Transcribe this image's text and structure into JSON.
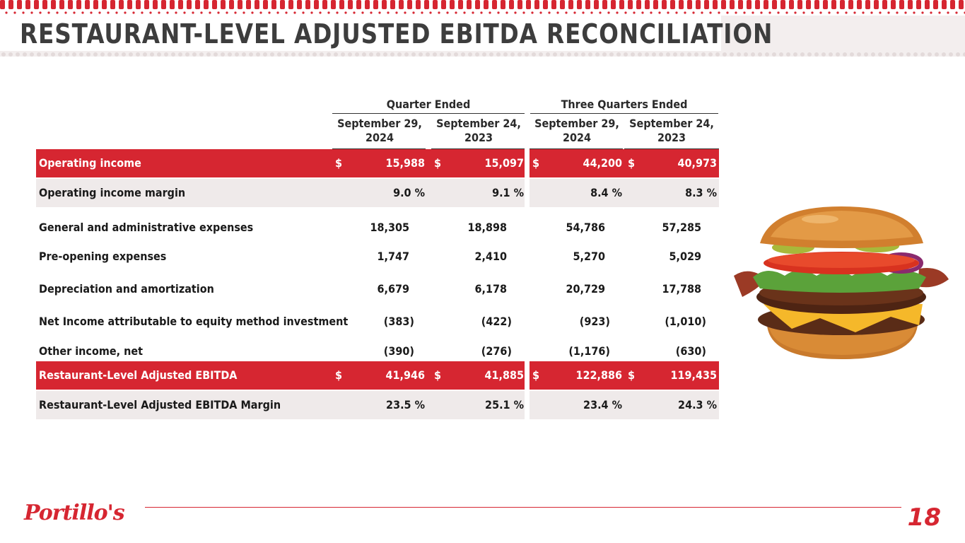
{
  "title": "RESTAURANT-LEVEL ADJUSTED EBITDA RECONCILIATION",
  "groups": {
    "quarter": "Quarter Ended",
    "three_quarters": "Three Quarters Ended"
  },
  "columns": [
    {
      "line1": "September 29,",
      "line2": "2024"
    },
    {
      "line1": "September 24,",
      "line2": "2023"
    },
    {
      "line1": "September 29,",
      "line2": "2024"
    },
    {
      "line1": "September 24,",
      "line2": "2023"
    }
  ],
  "rows": [
    {
      "label": "Operating income",
      "values": [
        "15,988",
        "15,097",
        "44,200",
        "40,973"
      ],
      "currency": "$"
    },
    {
      "label": "Operating income margin",
      "values": [
        "9.0 %",
        "9.1 %",
        "8.4 %",
        "8.3 %"
      ]
    },
    {
      "label": "General and administrative expenses",
      "values": [
        "18,305",
        "18,898",
        "54,786",
        "57,285"
      ]
    },
    {
      "label": "Pre-opening expenses",
      "values": [
        "1,747",
        "2,410",
        "5,270",
        "5,029"
      ]
    },
    {
      "label": "Depreciation and amortization",
      "values": [
        "6,679",
        "6,178",
        "20,729",
        "17,788"
      ]
    },
    {
      "label": "Net Income attributable to equity method investment",
      "values": [
        "(383)",
        "(422)",
        "(923)",
        "(1,010)"
      ]
    },
    {
      "label": "Other income, net",
      "values": [
        "(390)",
        "(276)",
        "(1,176)",
        "(630)"
      ]
    },
    {
      "label": "Restaurant-Level Adjusted EBITDA",
      "values": [
        "41,946",
        "41,885",
        "122,886",
        "119,435"
      ],
      "currency": "$"
    },
    {
      "label": "Restaurant-Level Adjusted EBITDA Margin",
      "values": [
        "23.5 %",
        "25.1 %",
        "23.4 %",
        "24.3 %"
      ]
    }
  ],
  "footer": {
    "logo": "Portillo's",
    "page": "18"
  },
  "colors": {
    "brand_red": "#d62631",
    "shade": "#efeaea",
    "title": "#3d3d3d"
  }
}
